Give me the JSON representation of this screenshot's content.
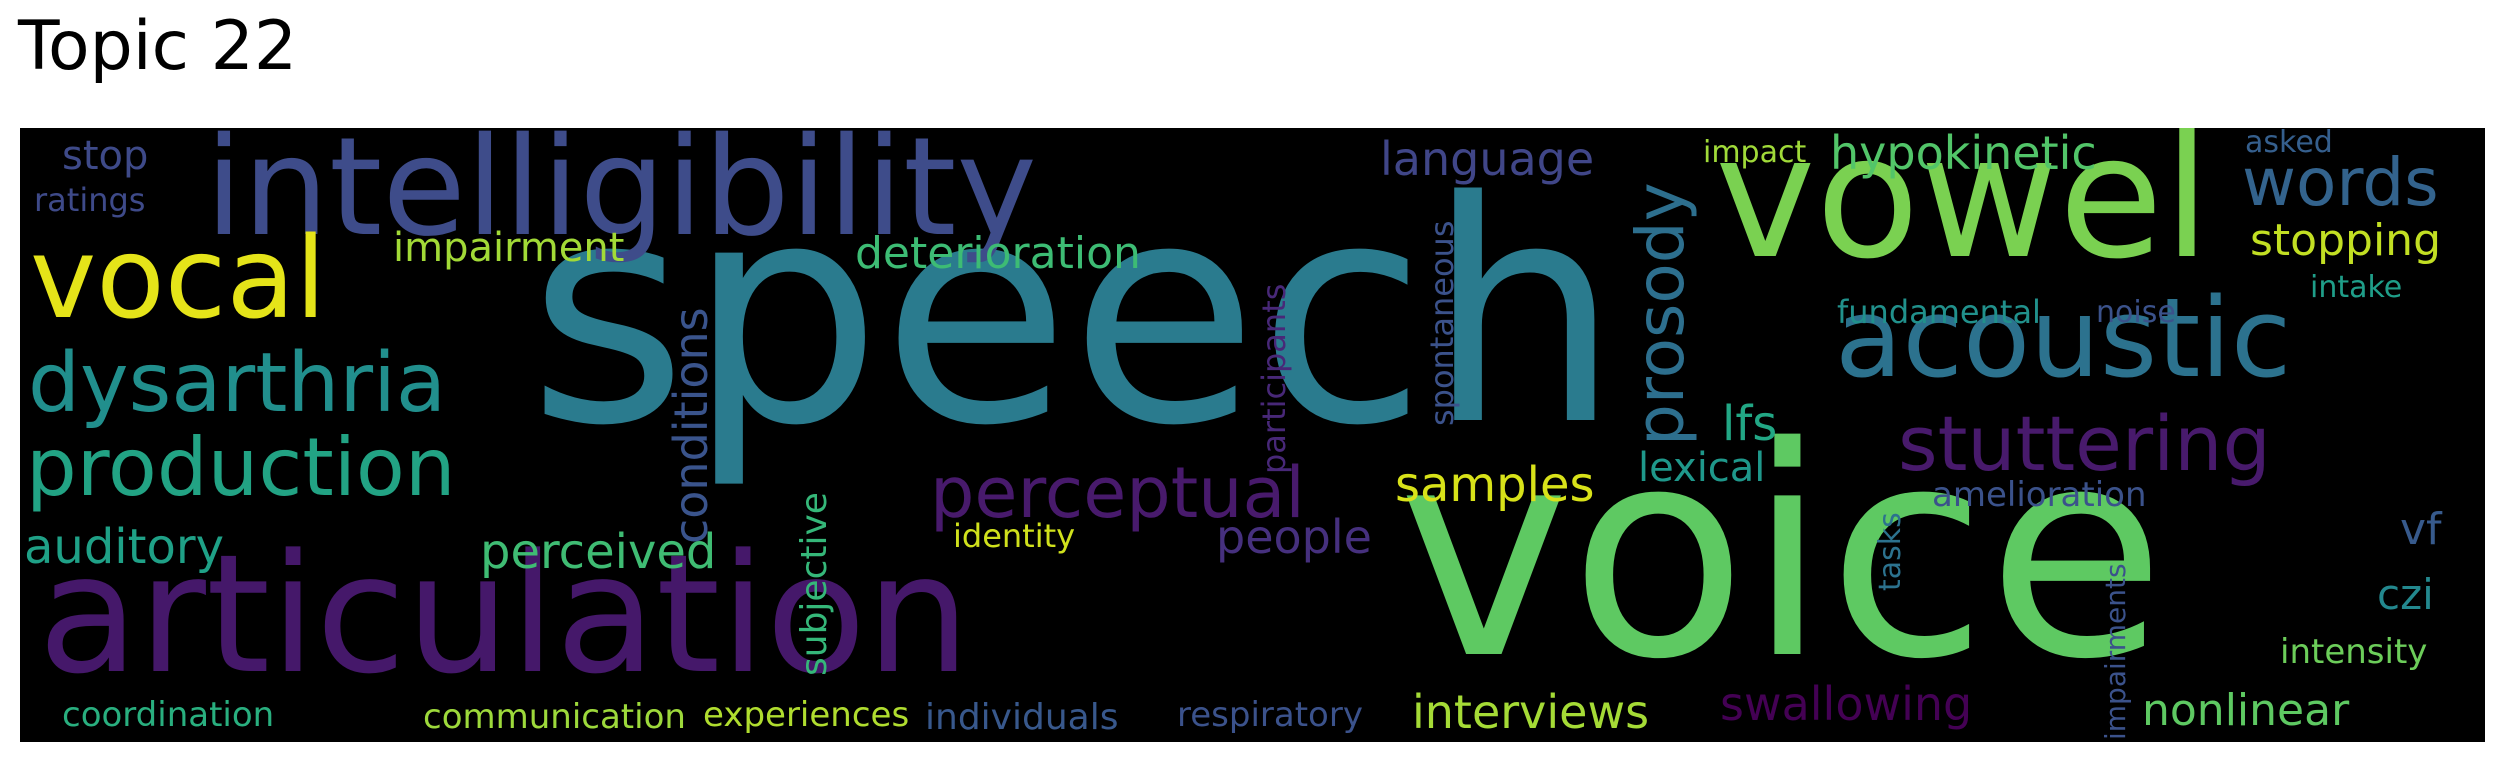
{
  "title": "Topic 22",
  "words": [
    {
      "text": "speech",
      "color": "#2a7b8e"
    },
    {
      "text": "voice",
      "color": "#5ec962"
    },
    {
      "text": "articulation",
      "color": "#45186a"
    },
    {
      "text": "intelligibility",
      "color": "#3e4c8a"
    },
    {
      "text": "vowel",
      "color": "#7ad151"
    },
    {
      "text": "vocal",
      "color": "#e5e419"
    },
    {
      "text": "acoustic",
      "color": "#2c728e"
    },
    {
      "text": "dysarthria",
      "color": "#218f8d"
    },
    {
      "text": "production",
      "color": "#22a384"
    },
    {
      "text": "stuttering",
      "color": "#481a6c"
    },
    {
      "text": "perceptual",
      "color": "#481a6c"
    },
    {
      "text": "prosody",
      "color": "#2d6f8e"
    },
    {
      "text": "words",
      "color": "#33638d"
    },
    {
      "text": "hypokinetic",
      "color": "#52c569"
    },
    {
      "text": "language",
      "color": "#404688"
    },
    {
      "text": "deterioration",
      "color": "#3dbc74"
    },
    {
      "text": "impairment",
      "color": "#a2da37"
    },
    {
      "text": "stopping",
      "color": "#c2df23"
    },
    {
      "text": "conditions",
      "color": "#3a548c"
    },
    {
      "text": "auditory",
      "color": "#1fa187"
    },
    {
      "text": "perceived",
      "color": "#3fbc73"
    },
    {
      "text": "samples",
      "color": "#d8e219"
    },
    {
      "text": "lfs",
      "color": "#22a785"
    },
    {
      "text": "lexical",
      "color": "#1f988b"
    },
    {
      "text": "people",
      "color": "#46307e"
    },
    {
      "text": "swallowing",
      "color": "#440154"
    },
    {
      "text": "interviews",
      "color": "#a5db36"
    },
    {
      "text": "nonlinear",
      "color": "#5ec962"
    },
    {
      "text": "coordination",
      "color": "#29af7f"
    },
    {
      "text": "communication",
      "color": "#9dd93b"
    },
    {
      "text": "experiences",
      "color": "#b0dd2f"
    },
    {
      "text": "individuals",
      "color": "#38588c"
    },
    {
      "text": "respiratory",
      "color": "#3b528b"
    },
    {
      "text": "identity",
      "color": "#d0e11c"
    },
    {
      "text": "subjective",
      "color": "#35b779"
    },
    {
      "text": "participants",
      "color": "#482878"
    },
    {
      "text": "spontaneous",
      "color": "#3b528b"
    },
    {
      "text": "stop",
      "color": "#3e4a89"
    },
    {
      "text": "ratings",
      "color": "#3e4a89"
    },
    {
      "text": "impact",
      "color": "#a0da39"
    },
    {
      "text": "asked",
      "color": "#355f8d"
    },
    {
      "text": "fundamental",
      "color": "#21918c"
    },
    {
      "text": "noise",
      "color": "#3b528b"
    },
    {
      "text": "intake",
      "color": "#1f9e89"
    },
    {
      "text": "amelioration",
      "color": "#3b528b"
    },
    {
      "text": "vf",
      "color": "#375a8c"
    },
    {
      "text": "czi",
      "color": "#23888e"
    },
    {
      "text": "intensity",
      "color": "#6ccd5a"
    },
    {
      "text": "tasks",
      "color": "#2c728e"
    },
    {
      "text": "impairments",
      "color": "#3b528b"
    }
  ]
}
